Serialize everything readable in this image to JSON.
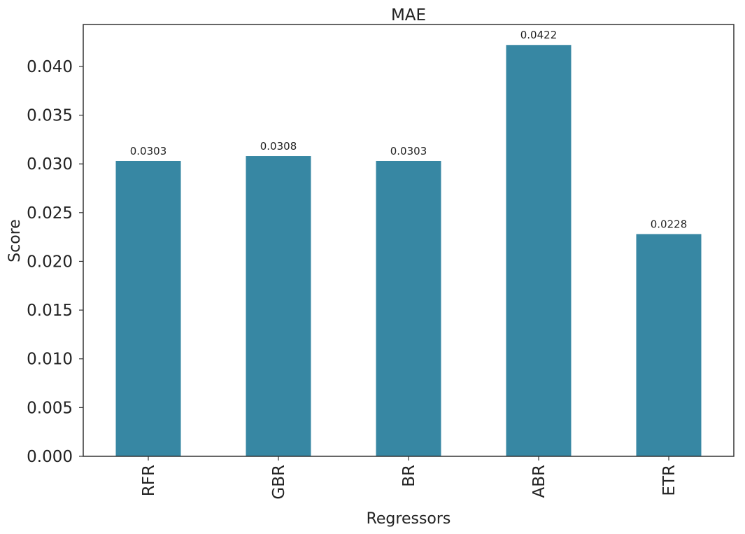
{
  "chart_data": {
    "type": "bar",
    "title": "MAE",
    "xlabel": "Regressors",
    "ylabel": "Score",
    "categories": [
      "RFR",
      "GBR",
      "BR",
      "ABR",
      "ETR"
    ],
    "values": [
      0.0303,
      0.0308,
      0.0303,
      0.0422,
      0.0228
    ],
    "data_labels": [
      "0.0303",
      "0.0308",
      "0.0303",
      "0.0422",
      "0.0228"
    ],
    "yticks": [
      0.0,
      0.005,
      0.01,
      0.015,
      0.02,
      0.025,
      0.03,
      0.035,
      0.04
    ],
    "ytick_labels": [
      "0.000",
      "0.005",
      "0.010",
      "0.015",
      "0.020",
      "0.025",
      "0.030",
      "0.035",
      "0.040"
    ],
    "ylim": [
      0,
      0.0443
    ],
    "grid": false,
    "bar_color": "#3787a3"
  }
}
